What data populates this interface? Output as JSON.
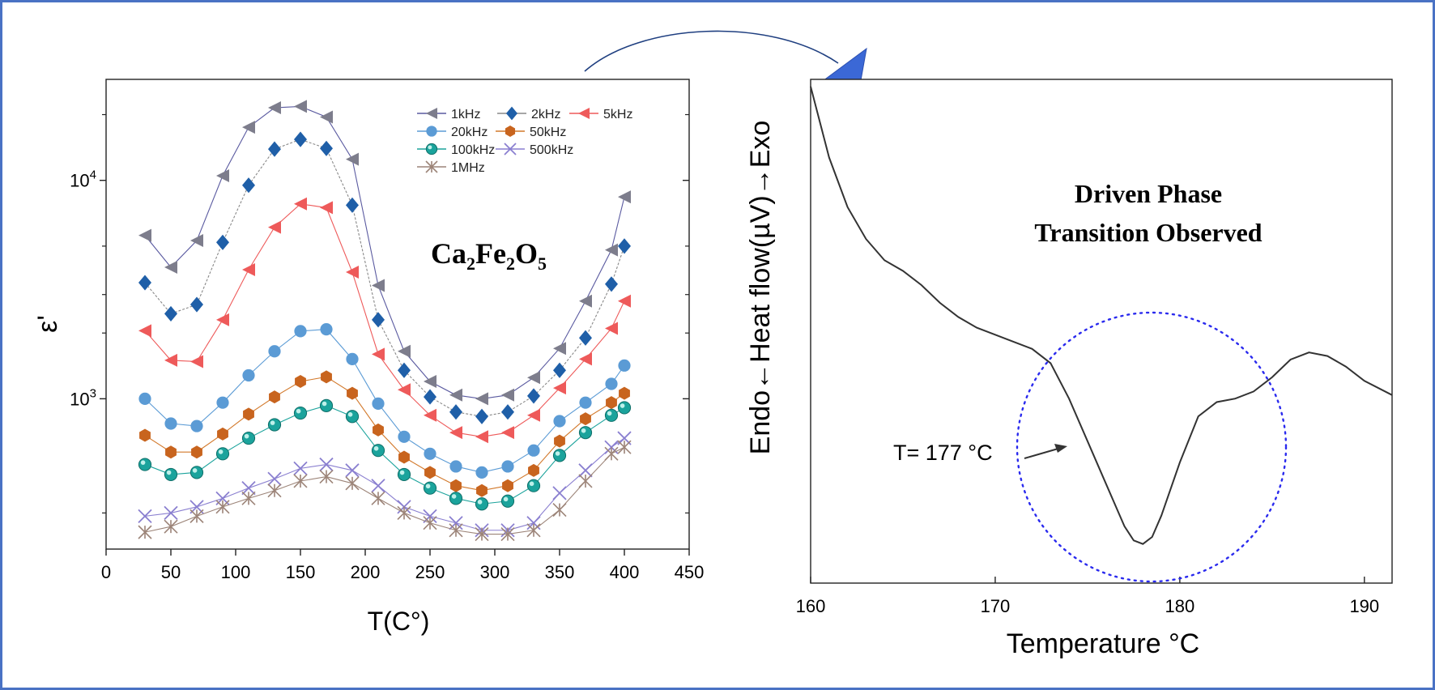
{
  "left_chart": {
    "type": "line",
    "y_scale": "log",
    "xlabel": "T(C°)",
    "ylabel": "ε'",
    "annotation": {
      "base": "Ca",
      "s1": "2",
      "mid": "Fe",
      "s2": "2",
      "end": "O",
      "s3": "5"
    },
    "xlim": [
      0,
      450
    ],
    "ylim": [
      205,
      29000
    ],
    "x_ticks": [
      "0",
      "50",
      "100",
      "150",
      "200",
      "250",
      "300",
      "350",
      "400",
      "450"
    ],
    "y_ticks": [
      {
        "value": 1000,
        "base": "10",
        "exp": "3"
      },
      {
        "value": 10000,
        "base": "10",
        "exp": "4"
      }
    ],
    "legend_position": "top-right",
    "x": [
      30,
      50,
      70,
      90,
      110,
      130,
      150,
      170,
      190,
      210,
      230,
      250,
      270,
      290,
      310,
      330,
      350,
      370,
      390,
      400
    ],
    "series": [
      {
        "name": "1kHz",
        "color": "#7d7d8c",
        "line": "#5a5aa0",
        "marker": "tri-left",
        "values": [
          5600,
          4000,
          5300,
          10500,
          17500,
          21500,
          21800,
          19500,
          12500,
          3300,
          1650,
          1200,
          1040,
          1000,
          1040,
          1250,
          1700,
          2800,
          4800,
          8400
        ]
      },
      {
        "name": "2kHz",
        "color": "#1f5fa8",
        "line": "#888888",
        "marker": "diamond",
        "values": [
          3400,
          2450,
          2700,
          5200,
          9500,
          13900,
          15400,
          14000,
          7700,
          2300,
          1350,
          1020,
          870,
          830,
          870,
          1030,
          1350,
          1900,
          3350,
          5000
        ]
      },
      {
        "name": "5kHz",
        "color": "#ee5a5a",
        "line": "#ee5a5a",
        "marker": "tri-left",
        "values": [
          2050,
          1500,
          1480,
          2300,
          3900,
          6100,
          7800,
          7500,
          3800,
          1600,
          1100,
          840,
          700,
          670,
          700,
          840,
          1120,
          1520,
          2100,
          2800
        ]
      },
      {
        "name": "20kHz",
        "color": "#5b9bd5",
        "line": "#5b9bd5",
        "marker": "circle",
        "values": [
          1000,
          770,
          750,
          960,
          1280,
          1650,
          2040,
          2080,
          1520,
          950,
          670,
          560,
          490,
          460,
          490,
          580,
          790,
          960,
          1170,
          1420
        ]
      },
      {
        "name": "50kHz",
        "color": "#c8641e",
        "line": "#d2782a",
        "marker": "hexagon",
        "values": [
          680,
          570,
          570,
          690,
          850,
          1020,
          1200,
          1260,
          1060,
          720,
          540,
          460,
          400,
          380,
          400,
          470,
          640,
          810,
          960,
          1060
        ]
      },
      {
        "name": "100kHz",
        "color": "#1ba39c",
        "line": "#1ba39c",
        "marker": "sphere",
        "values": [
          500,
          450,
          460,
          560,
          660,
          760,
          860,
          930,
          830,
          580,
          450,
          390,
          350,
          330,
          340,
          400,
          550,
          700,
          840,
          910
        ]
      },
      {
        "name": "500kHz",
        "color": "#8a7fd0",
        "line": "#8a7fd0",
        "marker": "x",
        "values": [
          290,
          300,
          320,
          350,
          390,
          430,
          480,
          500,
          470,
          400,
          320,
          290,
          270,
          250,
          250,
          270,
          370,
          470,
          600,
          660
        ]
      },
      {
        "name": "1MHz",
        "color": "#9c8478",
        "line": "#9c8478",
        "marker": "star",
        "values": [
          245,
          260,
          290,
          320,
          350,
          380,
          420,
          440,
          410,
          350,
          300,
          270,
          250,
          240,
          240,
          250,
          310,
          420,
          560,
          600
        ]
      }
    ]
  },
  "right_chart": {
    "type": "line",
    "xlabel": "Temperature °C",
    "ylabel": "Endo←Heat flow(µV)→Exo",
    "xlim": [
      160,
      191.5
    ],
    "x_ticks": [
      "160",
      "170",
      "180",
      "190"
    ],
    "title_line1": "Driven Phase",
    "title_line2": "Transition Observed",
    "annotation": "T= 177 °C",
    "marked_x": 177,
    "circle_color": "#2a2aee",
    "curve": {
      "x": [
        160,
        161,
        162,
        163,
        164,
        165,
        166,
        167,
        168,
        169,
        170,
        171,
        172,
        173,
        174,
        175,
        176,
        177,
        177.5,
        178,
        178.5,
        179,
        180,
        181,
        182,
        183,
        184,
        185,
        186,
        187,
        188,
        189,
        190,
        191.5
      ],
      "y": [
        0.0,
        -0.2,
        -0.34,
        -0.43,
        -0.49,
        -0.52,
        -0.56,
        -0.61,
        -0.65,
        -0.68,
        -0.7,
        -0.72,
        -0.74,
        -0.78,
        -0.88,
        -1.0,
        -1.12,
        -1.24,
        -1.28,
        -1.29,
        -1.27,
        -1.21,
        -1.06,
        -0.93,
        -0.89,
        -0.88,
        -0.86,
        -0.82,
        -0.77,
        -0.75,
        -0.76,
        -0.79,
        -0.83,
        -0.87
      ]
    }
  },
  "arrow_color": "#1f3f80",
  "arrowhead_color": "#3b68d6",
  "frame_color": "#4a72c4"
}
